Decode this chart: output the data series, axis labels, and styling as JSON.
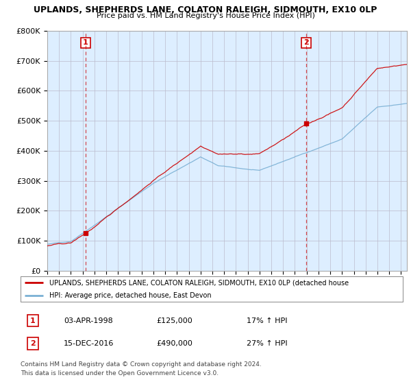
{
  "title1": "UPLANDS, SHEPHERDS LANE, COLATON RALEIGH, SIDMOUTH, EX10 0LP",
  "title2": "Price paid vs. HM Land Registry's House Price Index (HPI)",
  "ylim": [
    0,
    800000
  ],
  "yticks": [
    0,
    100000,
    200000,
    300000,
    400000,
    500000,
    600000,
    700000,
    800000
  ],
  "ytick_labels": [
    "£0",
    "£100K",
    "£200K",
    "£300K",
    "£400K",
    "£500K",
    "£600K",
    "£700K",
    "£800K"
  ],
  "sale1_date_num": 1998.25,
  "sale1_price": 125000,
  "sale1_label": "1",
  "sale1_text": "03-APR-1998",
  "sale1_price_text": "£125,000",
  "sale1_hpi_text": "17% ↑ HPI",
  "sale2_date_num": 2016.96,
  "sale2_price": 490000,
  "sale2_label": "2",
  "sale2_text": "15-DEC-2016",
  "sale2_price_text": "£490,000",
  "sale2_hpi_text": "27% ↑ HPI",
  "red_color": "#cc0000",
  "blue_color": "#7ab0d4",
  "vline_color": "#cc0000",
  "bg_plot_color": "#ddeeff",
  "legend_label_red": "UPLANDS, SHEPHERDS LANE, COLATON RALEIGH, SIDMOUTH, EX10 0LP (detached house",
  "legend_label_blue": "HPI: Average price, detached house, East Devon",
  "footer1": "Contains HM Land Registry data © Crown copyright and database right 2024.",
  "footer2": "This data is licensed under the Open Government Licence v3.0.",
  "bg_color": "#ffffff",
  "grid_color": "#bbbbcc",
  "xlim_start": 1995.0,
  "xlim_end": 2025.5,
  "noise_seed": 42
}
